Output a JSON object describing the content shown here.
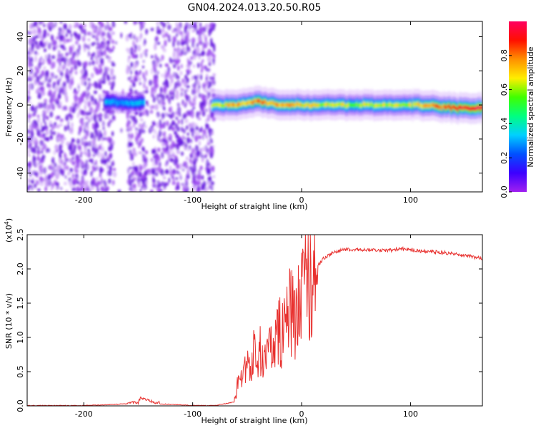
{
  "title": "GN04.2024.013.20.50.R05",
  "colors": {
    "snr_line": "#e8302e",
    "colormap": [
      "#a020f0",
      "#3c00ff",
      "#0050ff",
      "#00d0ff",
      "#00ff80",
      "#40ff00",
      "#ffee00",
      "#ff9000",
      "#ff1000",
      "#ff0060"
    ]
  },
  "chart_data": [
    {
      "type": "heatmap",
      "xlabel": "Height of straight line (km)",
      "ylabel": "Frequency (Hz)",
      "xlim": [
        -252,
        166
      ],
      "ylim": [
        -51,
        49
      ],
      "xticks": [
        -200,
        -100,
        0,
        100
      ],
      "yticks": [
        -40,
        -20,
        0,
        20,
        40
      ],
      "xtick_labels": [
        "-200",
        "-100",
        "0",
        "100"
      ],
      "ytick_labels": [
        "-40",
        "-20",
        "0",
        "20",
        "40"
      ],
      "noise_region": [
        -252,
        -80
      ],
      "gap_regions": [
        [
          -172,
          -160
        ],
        [
          -142,
          -138
        ]
      ],
      "ridge": {
        "x": [
          -180,
          -165,
          -150,
          -145,
          -80,
          -60,
          -40,
          -20,
          0,
          50,
          100,
          150,
          166
        ],
        "freq": [
          2,
          1,
          1,
          2,
          0,
          0,
          2,
          0,
          0,
          0,
          0,
          -2,
          -2
        ],
        "amplitude": [
          0.35,
          0.3,
          0.35,
          0.3,
          0.6,
          0.75,
          0.8,
          0.75,
          0.7,
          0.62,
          0.65,
          0.95,
          0.95
        ]
      },
      "colorbar": {
        "label": "Normalized spectral amplitude",
        "range": [
          0.0,
          1.0
        ],
        "ticks": [
          0.0,
          0.2,
          0.4,
          0.6,
          0.8
        ],
        "tick_labels": [
          "0.0",
          "0.2",
          "0.4",
          "0.6",
          "0.8"
        ]
      }
    },
    {
      "type": "line",
      "xlabel": "Height of straight line (km)",
      "ylabel": "SNR (10 * v/v)",
      "multiplier_label": "(x10",
      "multiplier_exp": "4",
      "multiplier_close": ")",
      "xlim": [
        -252,
        166
      ],
      "ylim": [
        0,
        2.5
      ],
      "xticks": [
        -200,
        -100,
        0,
        100
      ],
      "yticks": [
        0.0,
        0.5,
        1.0,
        1.5,
        2.0,
        2.5
      ],
      "xtick_labels": [
        "-200",
        "-100",
        "0",
        "100"
      ],
      "ytick_labels": [
        "0.0",
        "0.5",
        "1.0",
        "1.5",
        "2.0",
        "2.5"
      ],
      "series": [
        {
          "x": [
            -252,
            -200,
            -150,
            -148,
            -135,
            -100,
            -80,
            -62,
            -58,
            -50,
            -40,
            -30,
            -20,
            -15,
            -10,
            -5,
            0,
            10,
            20,
            30,
            40,
            60,
            80,
            95,
            100,
            110,
            130,
            150,
            166
          ],
          "y": [
            0.0,
            0.0,
            0.03,
            0.1,
            0.03,
            0.0,
            0.0,
            0.05,
            0.35,
            0.55,
            0.8,
            0.7,
            1.0,
            1.2,
            1.3,
            1.1,
            1.6,
            1.95,
            2.15,
            2.25,
            2.28,
            2.28,
            2.27,
            2.3,
            2.28,
            2.26,
            2.24,
            2.2,
            2.15
          ]
        }
      ]
    }
  ]
}
